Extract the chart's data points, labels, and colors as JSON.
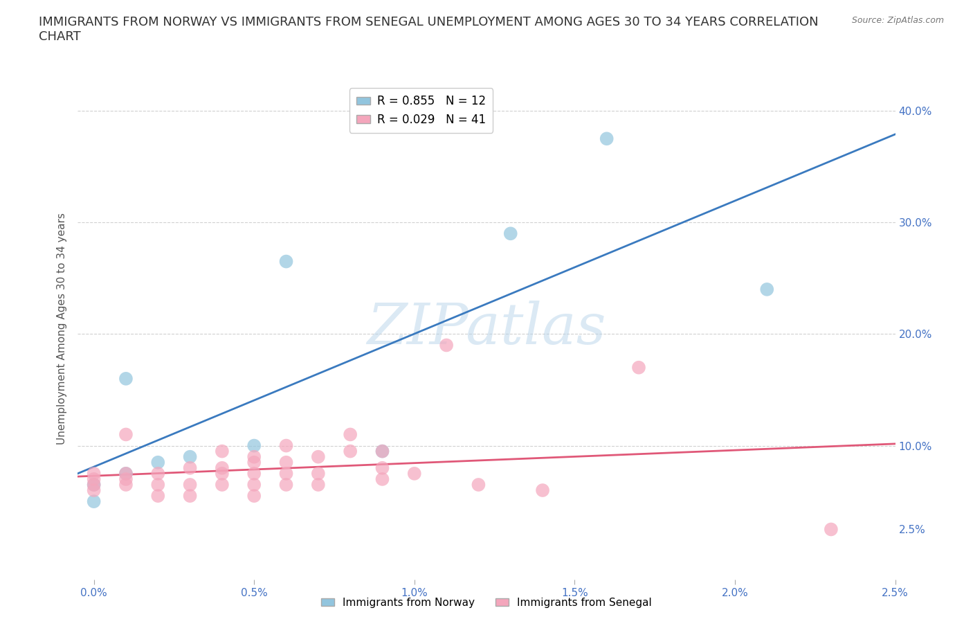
{
  "title": "IMMIGRANTS FROM NORWAY VS IMMIGRANTS FROM SENEGAL UNEMPLOYMENT AMONG AGES 30 TO 34 YEARS CORRELATION\nCHART",
  "source": "Source: ZipAtlas.com",
  "ylabel": "Unemployment Among Ages 30 to 34 years",
  "norway_label": "Immigrants from Norway",
  "senegal_label": "Immigrants from Senegal",
  "norway_R": 0.855,
  "norway_N": 12,
  "senegal_R": 0.029,
  "senegal_N": 41,
  "norway_color": "#92c5de",
  "senegal_color": "#f4a6bc",
  "norway_line_color": "#3a7abf",
  "senegal_line_color": "#e05878",
  "background_color": "#ffffff",
  "watermark": "ZIPatlas",
  "norway_x": [
    0.0,
    0.0,
    0.001,
    0.001,
    0.002,
    0.003,
    0.005,
    0.006,
    0.009,
    0.013,
    0.016,
    0.021
  ],
  "norway_y": [
    0.05,
    0.065,
    0.075,
    0.16,
    0.085,
    0.09,
    0.1,
    0.265,
    0.095,
    0.29,
    0.375,
    0.24
  ],
  "senegal_x": [
    0.0,
    0.0,
    0.0,
    0.0,
    0.001,
    0.001,
    0.001,
    0.001,
    0.002,
    0.002,
    0.002,
    0.003,
    0.003,
    0.003,
    0.004,
    0.004,
    0.004,
    0.004,
    0.005,
    0.005,
    0.005,
    0.005,
    0.005,
    0.006,
    0.006,
    0.006,
    0.006,
    0.007,
    0.007,
    0.007,
    0.008,
    0.008,
    0.009,
    0.009,
    0.009,
    0.01,
    0.011,
    0.012,
    0.014,
    0.017,
    0.023
  ],
  "senegal_y": [
    0.06,
    0.065,
    0.07,
    0.075,
    0.065,
    0.07,
    0.075,
    0.11,
    0.055,
    0.065,
    0.075,
    0.055,
    0.065,
    0.08,
    0.065,
    0.075,
    0.08,
    0.095,
    0.055,
    0.065,
    0.075,
    0.085,
    0.09,
    0.065,
    0.075,
    0.085,
    0.1,
    0.065,
    0.075,
    0.09,
    0.095,
    0.11,
    0.07,
    0.08,
    0.095,
    0.075,
    0.19,
    0.065,
    0.06,
    0.17,
    0.025
  ],
  "xlim": [
    -0.0005,
    0.025
  ],
  "ylim": [
    -0.02,
    0.43
  ],
  "yticks_grid": [
    0.1,
    0.2,
    0.3,
    0.4
  ],
  "right_ytick_labels": [
    "2.5%",
    "10.0%",
    "20.0%",
    "30.0%",
    "40.0%"
  ],
  "right_ytick_values": [
    0.025,
    0.1,
    0.2,
    0.3,
    0.4
  ],
  "xticks": [
    0.0,
    0.005,
    0.01,
    0.015,
    0.02,
    0.025
  ],
  "xtick_labels": [
    "0.0%",
    "0.5%",
    "1.0%",
    "1.5%",
    "2.0%",
    "2.5%"
  ],
  "grid_color": "#d0d0d0",
  "title_fontsize": 13,
  "label_fontsize": 11,
  "tick_fontsize": 11,
  "legend_fontsize": 12
}
